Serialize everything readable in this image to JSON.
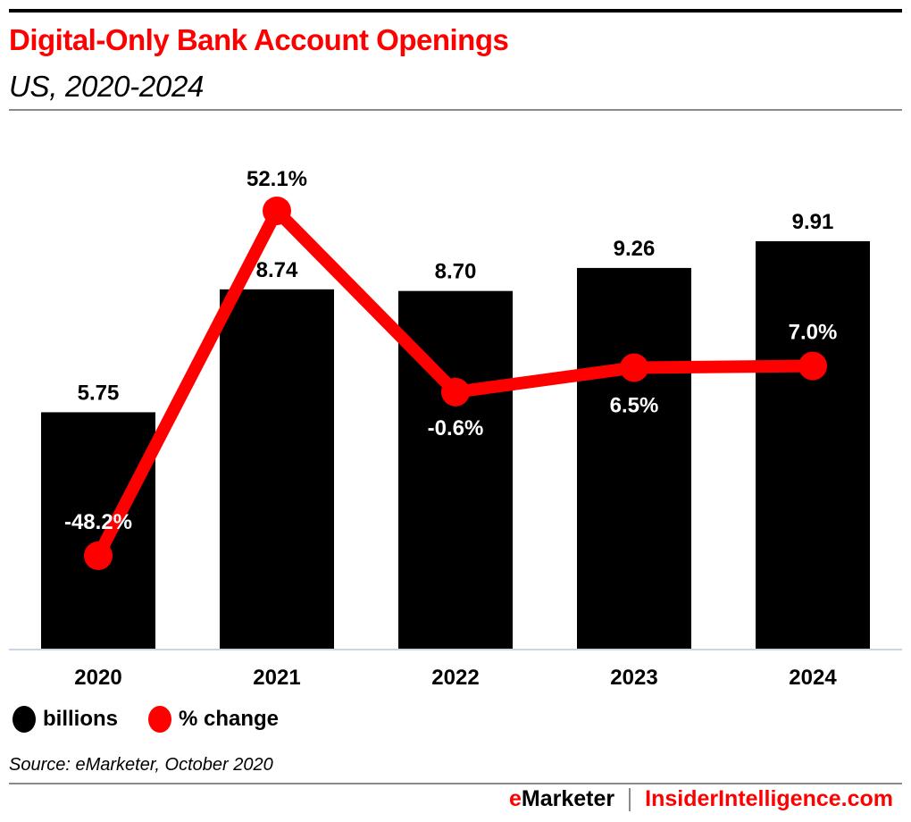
{
  "header": {
    "title": "Digital-Only Bank Account Openings",
    "subtitle": "US, 2020-2024"
  },
  "footer": {
    "source": "Source: eMarketer, October 2020",
    "brand_e": "e",
    "brand_rest": "Marketer",
    "brand_site": "InsiderIntelligence.com"
  },
  "legend": {
    "items": [
      {
        "label": "billions",
        "color": "#000000"
      },
      {
        "label": "% change",
        "color": "#ff0000"
      }
    ]
  },
  "colors": {
    "bar": "#000000",
    "line": "#ff0000",
    "axis": "#c8d6ea",
    "title": "#ff0000"
  },
  "chart_data": {
    "type": "bar",
    "title": "Digital-Only Bank Account Openings",
    "subtitle": "US, 2020-2024",
    "xlabel": "",
    "ylabel": "",
    "categories": [
      "2020",
      "2021",
      "2022",
      "2023",
      "2024"
    ],
    "series": [
      {
        "name": "billions",
        "type": "bar",
        "values": [
          5.75,
          8.74,
          8.7,
          9.26,
          9.91
        ],
        "labels": [
          "5.75",
          "8.74",
          "8.70",
          "9.26",
          "9.91"
        ],
        "color": "#000000"
      },
      {
        "name": "% change",
        "type": "line",
        "values": [
          -48.2,
          52.1,
          -0.6,
          6.5,
          7.0
        ],
        "labels": [
          "-48.2%",
          "52.1%",
          "-0.6%",
          "6.5%",
          "7.0%"
        ],
        "color": "#ff0000"
      }
    ],
    "ylim_bars": [
      0,
      9.91
    ],
    "ylim_line": [
      -48.2,
      52.1
    ],
    "grid": false,
    "legend_position": "bottom-left",
    "source": "Source: eMarketer, October 2020"
  }
}
